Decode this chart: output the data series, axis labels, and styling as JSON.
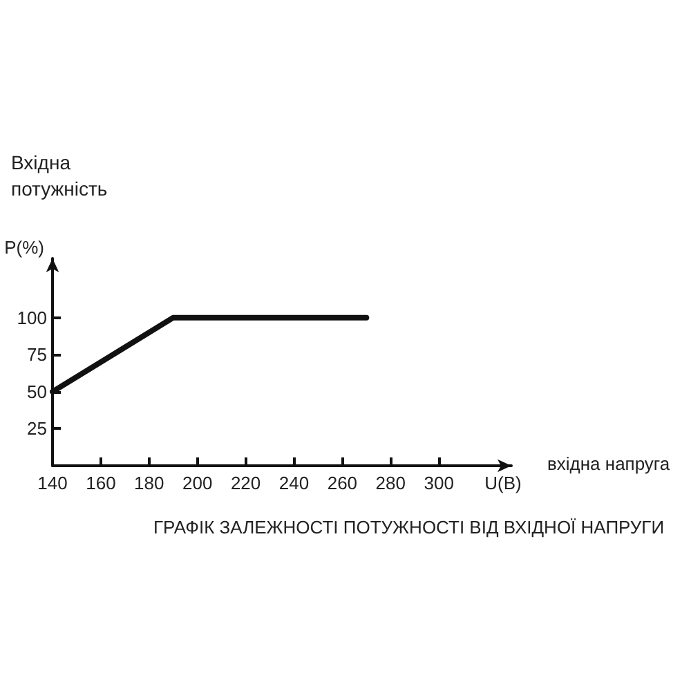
{
  "chart_data": {
    "type": "line",
    "title": "ГРАФІК ЗАЛЕЖНОСТІ ПОТУЖНОСТІ ВІД ВХІДНОЇ НАПРУГИ",
    "xlabel": "U(B)",
    "ylabel": "P(%)",
    "annotations": [
      "Вхідна потужність",
      "вхідна напруга"
    ],
    "x": [
      140,
      190,
      270
    ],
    "values": [
      50,
      100,
      100
    ],
    "color": "#111111",
    "xlim": [
      140,
      330
    ],
    "ylim": [
      0,
      140
    ],
    "xticks": [
      140,
      160,
      180,
      200,
      220,
      240,
      260,
      280,
      300
    ],
    "yticks": [
      25,
      50,
      75,
      100
    ],
    "marker": "none",
    "line_style": "solid"
  }
}
